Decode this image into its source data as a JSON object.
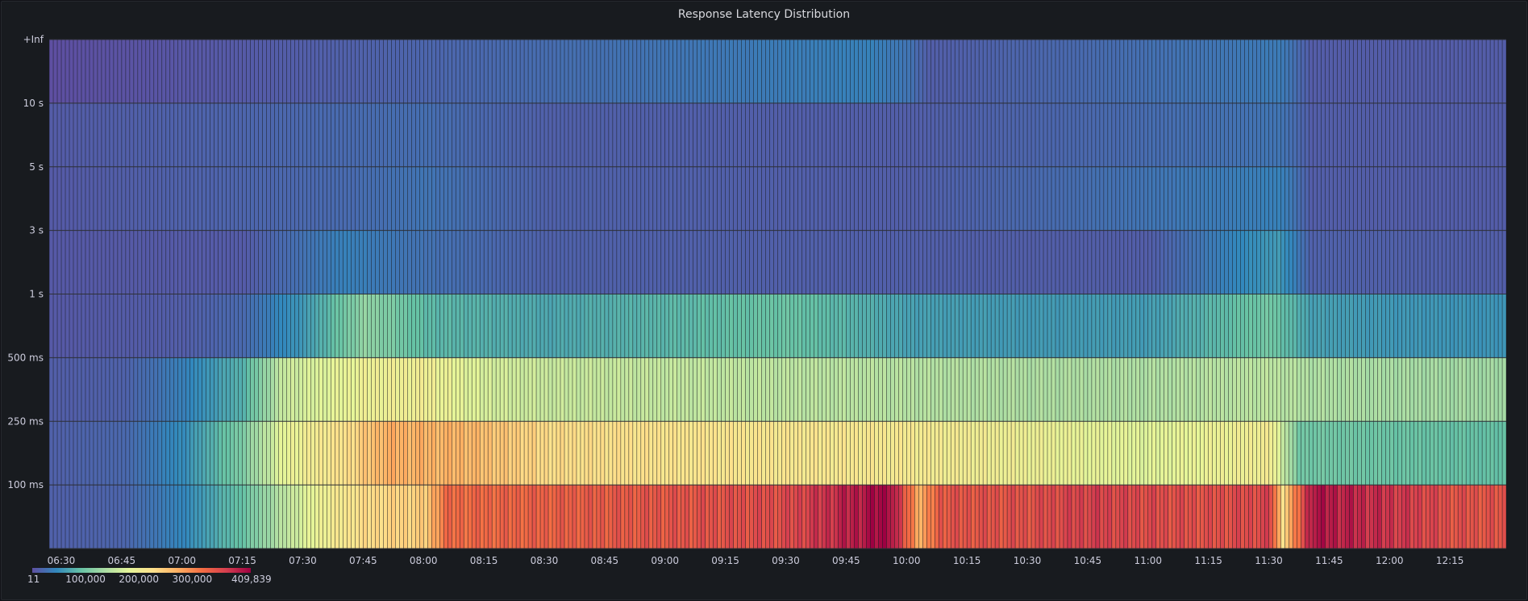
{
  "panel": {
    "title": "Response Latency Distribution"
  },
  "chart_data": {
    "type": "heatmap",
    "title": "Response Latency Distribution",
    "xlabel": "",
    "ylabel": "",
    "x_time_range": [
      "06:27",
      "12:29"
    ],
    "x_ticks": [
      "06:30",
      "06:45",
      "07:00",
      "07:15",
      "07:30",
      "07:45",
      "08:00",
      "08:15",
      "08:30",
      "08:45",
      "09:00",
      "09:15",
      "09:30",
      "09:45",
      "10:00",
      "10:15",
      "10:30",
      "10:45",
      "11:00",
      "11:15",
      "11:30",
      "11:45",
      "12:00",
      "12:15"
    ],
    "y_buckets": [
      "100 ms",
      "250 ms",
      "500 ms",
      "1 s",
      "3 s",
      "5 s",
      "10 s",
      "+Inf"
    ],
    "y_ticks": [
      "+Inf",
      "10 s",
      "5 s",
      "3 s",
      "1 s",
      "500 ms",
      "250 ms",
      "100 ms"
    ],
    "colorscale": "Spectral",
    "value_range": [
      11,
      409839
    ],
    "legend": {
      "placement": "bottom-left",
      "labels": [
        "11",
        "100,000",
        "200,000",
        "300,000",
        "409,839"
      ]
    },
    "colors": [
      "#5e4fa2",
      "#3288bd",
      "#66c2a5",
      "#abdda4",
      "#e6f598",
      "#fee08b",
      "#fdae61",
      "#f46d43",
      "#d53e4f",
      "#9e0142"
    ],
    "series": [
      {
        "name": "100 ms",
        "points": [
          [
            "06:27",
            14000
          ],
          [
            "06:45",
            18000
          ],
          [
            "07:00",
            45000
          ],
          [
            "07:15",
            95000
          ],
          [
            "07:25",
            150000
          ],
          [
            "07:35",
            200000
          ],
          [
            "07:45",
            230000
          ],
          [
            "08:00",
            245000
          ],
          [
            "08:05",
            320000
          ],
          [
            "08:30",
            330000
          ],
          [
            "09:00",
            340000
          ],
          [
            "09:30",
            350000
          ],
          [
            "09:45",
            385000
          ],
          [
            "09:55",
            409839
          ],
          [
            "10:03",
            270000
          ],
          [
            "10:08",
            340000
          ],
          [
            "10:30",
            345000
          ],
          [
            "10:45",
            360000
          ],
          [
            "11:00",
            350000
          ],
          [
            "11:15",
            345000
          ],
          [
            "11:30",
            355000
          ],
          [
            "11:33",
            230000
          ],
          [
            "11:36",
            300000
          ],
          [
            "11:40",
            395000
          ],
          [
            "11:45",
            390000
          ],
          [
            "12:00",
            370000
          ],
          [
            "12:15",
            345000
          ],
          [
            "12:29",
            340000
          ]
        ]
      },
      {
        "name": "250 ms",
        "points": [
          [
            "06:27",
            14000
          ],
          [
            "06:45",
            20000
          ],
          [
            "07:00",
            50000
          ],
          [
            "07:15",
            110000
          ],
          [
            "07:25",
            185000
          ],
          [
            "07:40",
            225000
          ],
          [
            "07:50",
            270000
          ],
          [
            "08:10",
            265000
          ],
          [
            "08:30",
            230000
          ],
          [
            "09:00",
            220000
          ],
          [
            "09:30",
            215000
          ],
          [
            "10:00",
            210000
          ],
          [
            "10:30",
            195000
          ],
          [
            "10:45",
            185000
          ],
          [
            "11:00",
            178000
          ],
          [
            "11:30",
            205000
          ],
          [
            "11:37",
            100000
          ],
          [
            "12:00",
            95000
          ],
          [
            "12:29",
            90000
          ]
        ]
      },
      {
        "name": "500 ms",
        "points": [
          [
            "06:27",
            12000
          ],
          [
            "06:45",
            15000
          ],
          [
            "07:00",
            40000
          ],
          [
            "07:15",
            80000
          ],
          [
            "07:25",
            160000
          ],
          [
            "07:45",
            195000
          ],
          [
            "08:00",
            200000
          ],
          [
            "08:15",
            170000
          ],
          [
            "08:30",
            160000
          ],
          [
            "09:00",
            155000
          ],
          [
            "09:30",
            150000
          ],
          [
            "10:00",
            145000
          ],
          [
            "10:30",
            140000
          ],
          [
            "11:00",
            140000
          ],
          [
            "11:30",
            150000
          ],
          [
            "11:40",
            140000
          ],
          [
            "12:00",
            135000
          ],
          [
            "12:29",
            130000
          ]
        ]
      },
      {
        "name": "1 s",
        "points": [
          [
            "06:27",
            8000
          ],
          [
            "07:00",
            12000
          ],
          [
            "07:15",
            22000
          ],
          [
            "07:30",
            60000
          ],
          [
            "07:45",
            120000
          ],
          [
            "08:00",
            85000
          ],
          [
            "08:30",
            70000
          ],
          [
            "09:30",
            95000
          ],
          [
            "10:00",
            65000
          ],
          [
            "10:30",
            60000
          ],
          [
            "11:00",
            62000
          ],
          [
            "11:30",
            100000
          ],
          [
            "11:40",
            65000
          ],
          [
            "12:00",
            58000
          ],
          [
            "12:29",
            55000
          ]
        ]
      },
      {
        "name": "3 s",
        "points": [
          [
            "06:27",
            8000
          ],
          [
            "07:15",
            10000
          ],
          [
            "07:40",
            40000
          ],
          [
            "07:55",
            30000
          ],
          [
            "08:30",
            15000
          ],
          [
            "09:00",
            14000
          ],
          [
            "10:00",
            13000
          ],
          [
            "11:00",
            12000
          ],
          [
            "11:32",
            60000
          ],
          [
            "11:40",
            15000
          ],
          [
            "12:29",
            12000
          ]
        ]
      },
      {
        "name": "5 s",
        "points": [
          [
            "06:27",
            9000
          ],
          [
            "07:40",
            22000
          ],
          [
            "08:00",
            30000
          ],
          [
            "08:30",
            15000
          ],
          [
            "10:00",
            12000
          ],
          [
            "11:33",
            40000
          ],
          [
            "11:40",
            12000
          ],
          [
            "12:29",
            11000
          ]
        ]
      },
      {
        "name": "10 s",
        "points": [
          [
            "06:27",
            10000
          ],
          [
            "08:00",
            25000
          ],
          [
            "08:30",
            14000
          ],
          [
            "10:00",
            12000
          ],
          [
            "11:33",
            30000
          ],
          [
            "11:40",
            12000
          ],
          [
            "12:29",
            11000
          ]
        ]
      },
      {
        "name": "+Inf",
        "points": [
          [
            "06:27",
            11
          ],
          [
            "07:45",
            15000
          ],
          [
            "09:50",
            40000
          ],
          [
            "10:00",
            30000
          ],
          [
            "10:05",
            12000
          ],
          [
            "11:33",
            35000
          ],
          [
            "11:40",
            11000
          ],
          [
            "12:29",
            11000
          ]
        ]
      }
    ]
  }
}
